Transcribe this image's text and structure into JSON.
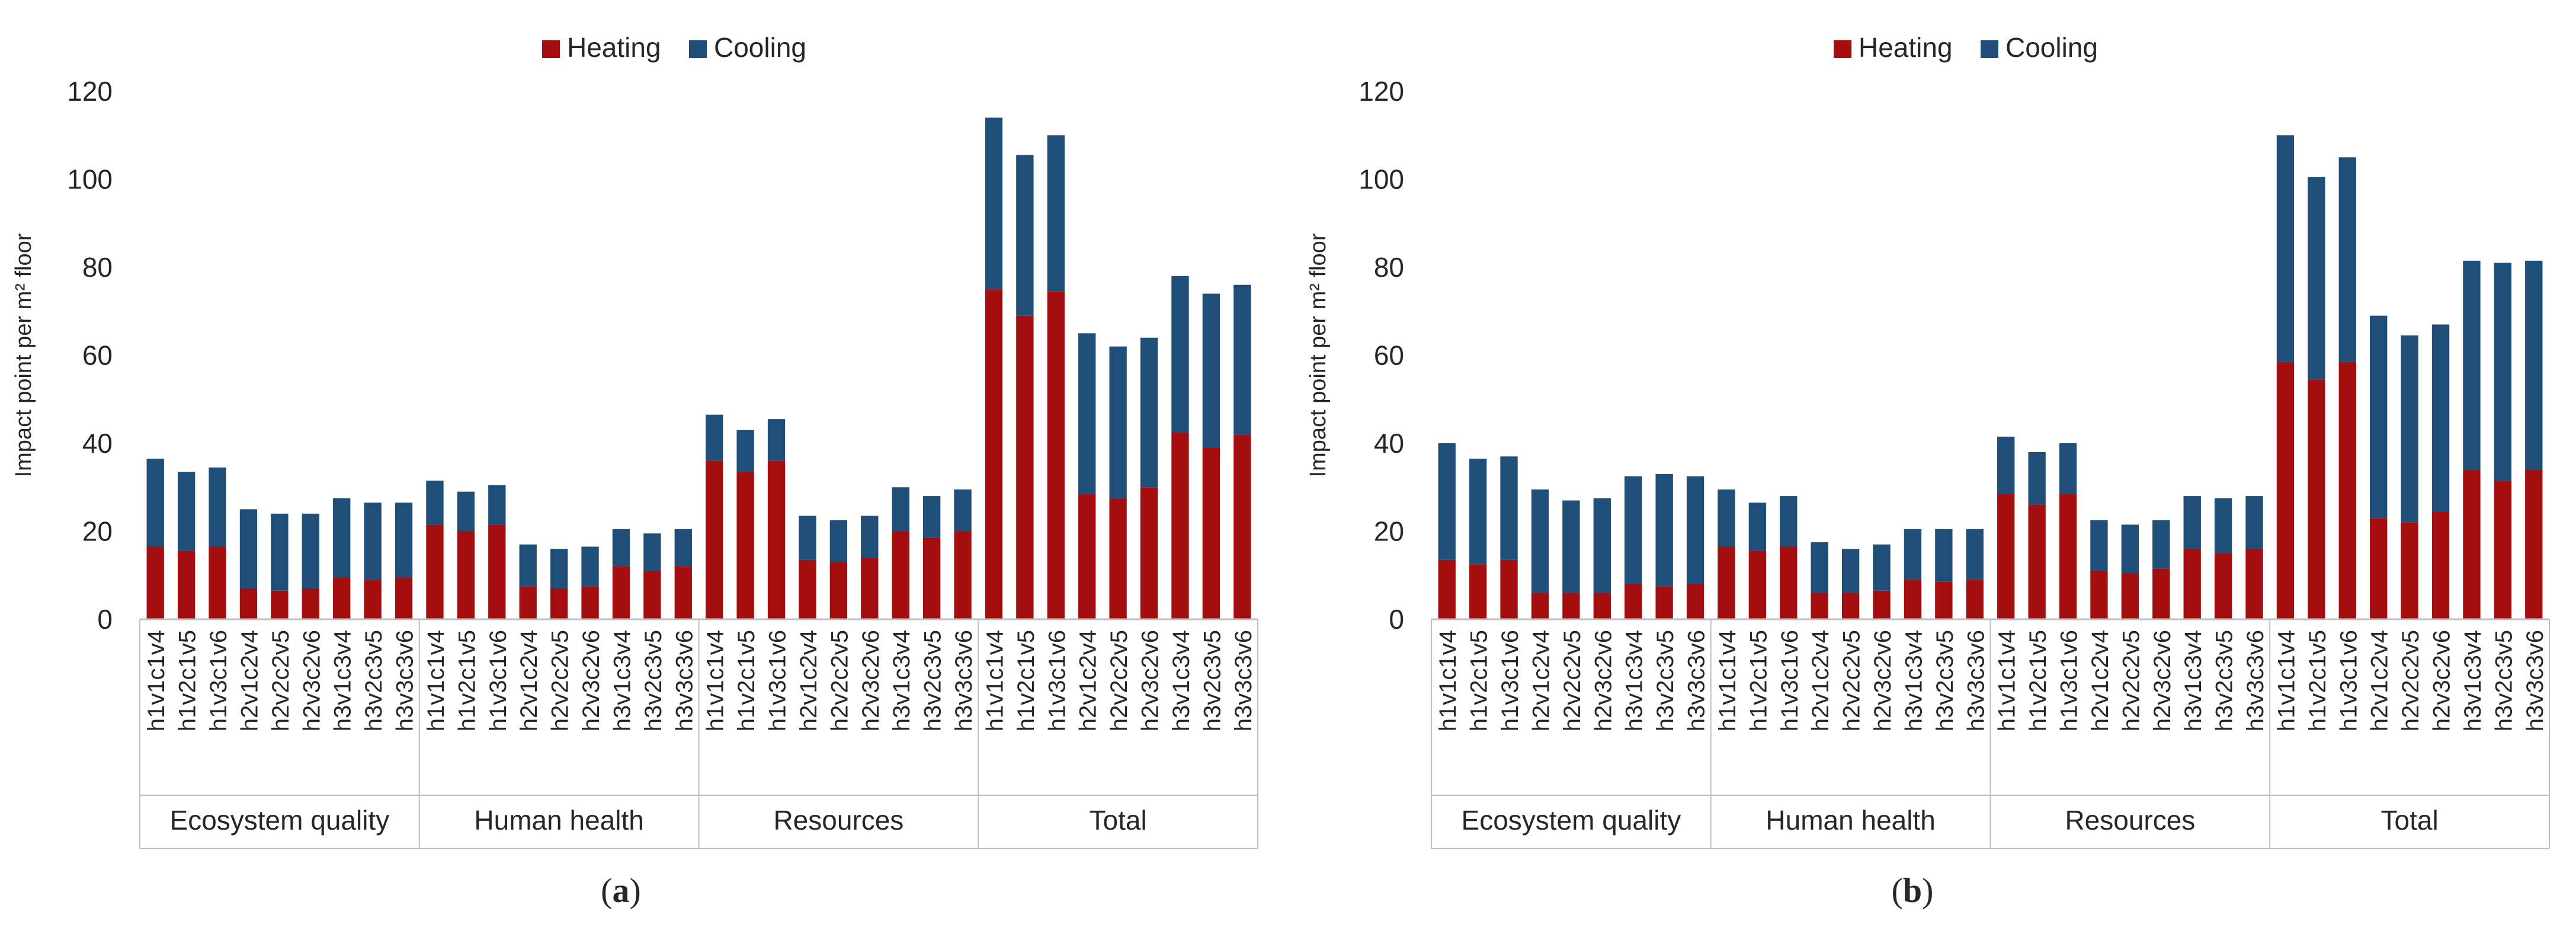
{
  "colors": {
    "heating": "#a50e0e",
    "cooling": "#1f4e79",
    "axis": "#bfbfbf",
    "text": "#262626"
  },
  "chart_data": [
    {
      "type": "bar",
      "stacked": true,
      "panel_label_open": "(",
      "panel_label_letter": "a",
      "panel_label_close": ")",
      "ylabel": "Impact point per m² floor",
      "ylim": [
        0,
        120
      ],
      "yticks": [
        0,
        20,
        40,
        60,
        80,
        100,
        120
      ],
      "legend": {
        "position": "top-center",
        "entries": [
          "Heating",
          "Cooling"
        ]
      },
      "groups": [
        {
          "name": "Ecosystem quality",
          "categories": [
            "h1v1c1v4",
            "h1v2c1v5",
            "h1v3c1v6",
            "h2v1c2v4",
            "h2v2c2v5",
            "h2v3c2v6",
            "h3v1c3v4",
            "h3v2c3v5",
            "h3v3c3v6"
          ]
        },
        {
          "name": "Human health",
          "categories": [
            "h1v1c1v4",
            "h1v2c1v5",
            "h1v3c1v6",
            "h2v1c2v4",
            "h2v2c2v5",
            "h2v3c2v6",
            "h3v1c3v4",
            "h3v2c3v5",
            "h3v3c3v6"
          ]
        },
        {
          "name": "Resources",
          "categories": [
            "h1v1c1v4",
            "h1v2c1v5",
            "h1v3c1v6",
            "h2v1c2v4",
            "h2v2c2v5",
            "h2v3c2v6",
            "h3v1c3v4",
            "h3v2c3v5",
            "h3v3c3v6"
          ]
        },
        {
          "name": "Total",
          "categories": [
            "h1v1c1v4",
            "h1v2c1v5",
            "h1v3c1v6",
            "h2v1c2v4",
            "h2v2c2v5",
            "h2v3c2v6",
            "h3v1c3v4",
            "h3v2c3v5",
            "h3v3c3v6"
          ]
        }
      ],
      "series": [
        {
          "name": "Heating",
          "values": [
            16.5,
            15.5,
            16.5,
            7,
            6.5,
            7,
            9.5,
            9,
            9.5,
            21.5,
            20,
            21.5,
            7.5,
            7,
            7.5,
            12,
            11,
            12,
            36,
            33.5,
            36,
            13.5,
            13,
            14,
            20,
            18.5,
            20,
            75,
            69,
            74.5,
            28.5,
            27.5,
            30,
            42.5,
            39,
            42
          ]
        },
        {
          "name": "Cooling",
          "values": [
            20,
            18,
            18,
            18,
            17.5,
            17,
            18,
            17.5,
            17,
            10,
            9,
            9,
            9.5,
            9,
            9,
            8.5,
            8.5,
            8.5,
            10.5,
            9.5,
            9.5,
            10,
            9.5,
            9.5,
            10,
            9.5,
            9.5,
            39,
            36.5,
            35.5,
            36.5,
            34.5,
            34,
            35.5,
            35,
            34
          ]
        }
      ]
    },
    {
      "type": "bar",
      "stacked": true,
      "panel_label_open": "(",
      "panel_label_letter": "b",
      "panel_label_close": ")",
      "ylabel": "Impact point per m² floor",
      "ylim": [
        0,
        120
      ],
      "yticks": [
        0,
        20,
        40,
        60,
        80,
        100,
        120
      ],
      "legend": {
        "position": "top-center",
        "entries": [
          "Heating",
          "Cooling"
        ]
      },
      "groups": [
        {
          "name": "Ecosystem quality",
          "categories": [
            "h1v1c1v4",
            "h1v2c1v5",
            "h1v3c1v6",
            "h2v1c2v4",
            "h2v2c2v5",
            "h2v3c2v6",
            "h3v1c3v4",
            "h3v2c3v5",
            "h3v3c3v6"
          ]
        },
        {
          "name": "Human health",
          "categories": [
            "h1v1c1v4",
            "h1v2c1v5",
            "h1v3c1v6",
            "h2v1c2v4",
            "h2v2c2v5",
            "h2v3c2v6",
            "h3v1c3v4",
            "h3v2c3v5",
            "h3v3c3v6"
          ]
        },
        {
          "name": "Resources",
          "categories": [
            "h1v1c1v4",
            "h1v2c1v5",
            "h1v3c1v6",
            "h2v1c2v4",
            "h2v2c2v5",
            "h2v3c2v6",
            "h3v1c3v4",
            "h3v2c3v5",
            "h3v3c3v6"
          ]
        },
        {
          "name": "Total",
          "categories": [
            "h1v1c1v4",
            "h1v2c1v5",
            "h1v3c1v6",
            "h2v1c2v4",
            "h2v2c2v5",
            "h2v3c2v6",
            "h3v1c3v4",
            "h3v2c3v5",
            "h3v3c3v6"
          ]
        }
      ],
      "series": [
        {
          "name": "Heating",
          "values": [
            13.5,
            12.5,
            13.5,
            6,
            6,
            6,
            8,
            7.5,
            8,
            16.5,
            15.5,
            16.5,
            6,
            6,
            6.5,
            9,
            8.5,
            9,
            28.5,
            26,
            28.5,
            11,
            10.5,
            11.5,
            16,
            15,
            16,
            58.5,
            54.5,
            58.5,
            23,
            22,
            24.5,
            34,
            31.5,
            34
          ]
        },
        {
          "name": "Cooling",
          "values": [
            26.5,
            24,
            23.5,
            23.5,
            21,
            21.5,
            24.5,
            25.5,
            24.5,
            13,
            11,
            11.5,
            11.5,
            10,
            10.5,
            11.5,
            12,
            11.5,
            13,
            12,
            11.5,
            11.5,
            11,
            11,
            12,
            12.5,
            12,
            51.5,
            46,
            46.5,
            46,
            42.5,
            42.5,
            47.5,
            49.5,
            47.5
          ]
        }
      ]
    }
  ]
}
